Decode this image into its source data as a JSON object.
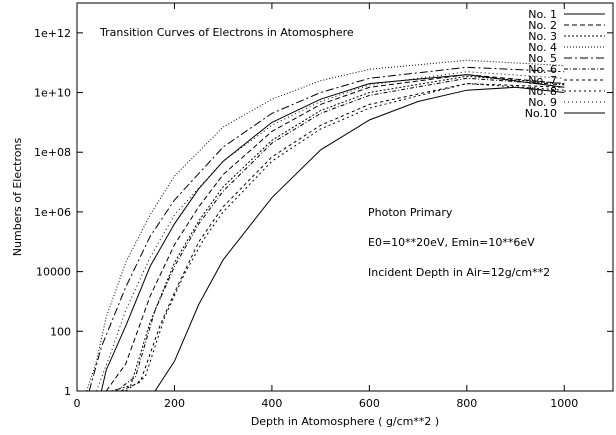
{
  "chart_data": {
    "type": "line",
    "title": "Transition Curves of Electrons in Atomosphere",
    "xlabel": "Depth in Atomosphere ( g/cm**2 )",
    "ylabel": "Numbers of Electrons",
    "xlim": [
      0,
      1100
    ],
    "ylim": [
      1,
      10000000000000.0
    ],
    "y_scale": "log",
    "x_ticks": [
      0,
      200,
      400,
      600,
      800,
      1000
    ],
    "y_ticks": [
      1,
      100,
      10000,
      1000000,
      100000000,
      10000000000,
      1000000000000
    ],
    "y_tick_labels": [
      "1",
      "100",
      "10000",
      "1e+06",
      "1e+08",
      "1e+10",
      "1e+12"
    ],
    "annotations": [
      "Photon Primary",
      "E0=10**20eV, Emin=10**6eV",
      "Incident Depth in Air=12g/cm**2"
    ],
    "grid": false,
    "legend_position": "top-right",
    "series": [
      {
        "name": "No. 1",
        "dash": "",
        "points": [
          [
            50,
            1
          ],
          [
            60,
            5
          ],
          [
            100,
            150
          ],
          [
            150,
            15000.0
          ],
          [
            200,
            400000.0
          ],
          [
            250,
            6000000.0
          ],
          [
            300,
            50000000.0
          ],
          [
            400,
            1000000000.0
          ],
          [
            500,
            6000000000.0
          ],
          [
            600,
            20000000000.0
          ],
          [
            800,
            40000000000.0
          ],
          [
            1000,
            15000000000.0
          ]
        ]
      },
      {
        "name": "No. 2",
        "dash": "5,3",
        "points": [
          [
            60,
            1
          ],
          [
            100,
            8
          ],
          [
            150,
            1500
          ],
          [
            200,
            80000.0
          ],
          [
            250,
            1500000.0
          ],
          [
            300,
            18000000.0
          ],
          [
            400,
            500000000.0
          ],
          [
            500,
            4000000000.0
          ],
          [
            600,
            15000000000.0
          ],
          [
            800,
            40000000000.0
          ],
          [
            1000,
            20000000000.0
          ]
        ]
      },
      {
        "name": "No. 3",
        "dash": "2,2",
        "points": [
          [
            70,
            1
          ],
          [
            110,
            1.5
          ],
          [
            150,
            200
          ],
          [
            200,
            20000.0
          ],
          [
            250,
            500000.0
          ],
          [
            300,
            7000000.0
          ],
          [
            400,
            250000000.0
          ],
          [
            500,
            2500000000.0
          ],
          [
            600,
            10000000000.0
          ],
          [
            800,
            35000000000.0
          ],
          [
            1000,
            20000000000.0
          ]
        ]
      },
      {
        "name": "No. 4",
        "dash": "1,2",
        "points": [
          [
            20,
            1
          ],
          [
            40,
            10
          ],
          [
            60,
            300
          ],
          [
            100,
            20000.0
          ],
          [
            150,
            800000.0
          ],
          [
            200,
            16000000.0
          ],
          [
            300,
            700000000.0
          ],
          [
            400,
            6000000000.0
          ],
          [
            500,
            25000000000.0
          ],
          [
            600,
            60000000000.0
          ],
          [
            800,
            120000000000.0
          ],
          [
            1000,
            80000000000.0
          ]
        ]
      },
      {
        "name": "No. 5",
        "dash": "8,3,2,3",
        "points": [
          [
            25,
            1
          ],
          [
            50,
            30
          ],
          [
            100,
            3000
          ],
          [
            150,
            150000.0
          ],
          [
            200,
            2500000.0
          ],
          [
            300,
            150000000.0
          ],
          [
            400,
            2000000000.0
          ],
          [
            500,
            10000000000.0
          ],
          [
            600,
            30000000000.0
          ],
          [
            800,
            70000000000.0
          ],
          [
            1000,
            50000000000.0
          ]
        ]
      },
      {
        "name": "No. 6",
        "dash": "4,2,1,2",
        "points": [
          [
            80,
            1
          ],
          [
            120,
            3
          ],
          [
            160,
            500
          ],
          [
            200,
            15000.0
          ],
          [
            250,
            400000.0
          ],
          [
            300,
            5000000.0
          ],
          [
            400,
            200000000.0
          ],
          [
            500,
            2000000000.0
          ],
          [
            600,
            8000000000.0
          ],
          [
            800,
            30000000000.0
          ],
          [
            1000,
            18000000000.0
          ]
        ]
      },
      {
        "name": "No. 7",
        "dash": "3,3",
        "points": [
          [
            90,
            1
          ],
          [
            130,
            2
          ],
          [
            170,
            150
          ],
          [
            200,
            2000
          ],
          [
            250,
            100000.0
          ],
          [
            300,
            1500000.0
          ],
          [
            400,
            70000000.0
          ],
          [
            500,
            800000000.0
          ],
          [
            600,
            4000000000.0
          ],
          [
            800,
            20000000000.0
          ],
          [
            1000,
            15000000000.0
          ]
        ]
      },
      {
        "name": "No. 8",
        "dash": "2,3",
        "points": [
          [
            100,
            1
          ],
          [
            140,
            3
          ],
          [
            180,
            300
          ],
          [
            220,
            8000
          ],
          [
            260,
            120000.0
          ],
          [
            300,
            1000000.0
          ],
          [
            400,
            50000000.0
          ],
          [
            500,
            600000000.0
          ],
          [
            600,
            3000000000.0
          ],
          [
            800,
            20000000000.0
          ],
          [
            1000,
            12000000000.0
          ]
        ]
      },
      {
        "name": "No. 9",
        "dash": "1,3",
        "points": [
          [
            40,
            1
          ],
          [
            70,
            20
          ],
          [
            100,
            500
          ],
          [
            150,
            30000.0
          ],
          [
            200,
            800000.0
          ],
          [
            300,
            50000000.0
          ],
          [
            400,
            800000000.0
          ],
          [
            500,
            5000000000.0
          ],
          [
            600,
            18000000000.0
          ],
          [
            800,
            50000000000.0
          ],
          [
            1000,
            30000000000.0
          ]
        ]
      },
      {
        "name": "No.10",
        "dash": "",
        "points": [
          [
            60,
            1
          ],
          [
            160,
            1
          ],
          [
            200,
            10
          ],
          [
            250,
            800
          ],
          [
            300,
            25000.0
          ],
          [
            400,
            3000000.0
          ],
          [
            500,
            120000000.0
          ],
          [
            600,
            1200000000.0
          ],
          [
            700,
            5000000000.0
          ],
          [
            800,
            12000000000.0
          ],
          [
            900,
            15000000000.0
          ],
          [
            1000,
            10000000000.0
          ]
        ]
      }
    ]
  }
}
